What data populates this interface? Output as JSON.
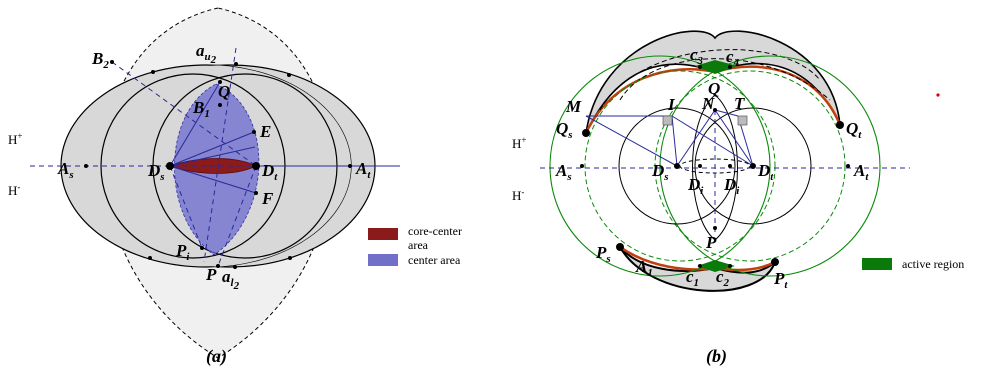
{
  "panel_a": {
    "caption": "(a)",
    "labels": {
      "B": "B",
      "B_sub": "2",
      "au": "a",
      "au_sub": "u",
      "au_sub2": "2",
      "Q": "Q",
      "B1": "B",
      "B1_sub": "1",
      "E": "E",
      "Hplus": "H",
      "Hplus_sup": "+",
      "Hminus": "H",
      "Hminus_sup": "-",
      "As": "A",
      "As_sub": "s",
      "Ds": "D",
      "Ds_sub": "s",
      "Dt": "D",
      "Dt_sub": "t",
      "At": "A",
      "At_sub": "t",
      "F": "F",
      "Pi": "P",
      "Pi_sub": "i",
      "P": "P",
      "al": "a",
      "al_sub": "l",
      "al_sub2": "2"
    },
    "legend": [
      {
        "label": "core-center",
        "label2": "area",
        "color": "#8b1a1a"
      },
      {
        "label": "center area",
        "color": "#7070c8"
      }
    ]
  },
  "panel_b": {
    "caption": "(b)",
    "labels": {
      "c3": "c",
      "c3_sub": "3",
      "c4": "c",
      "c4_sub": "4",
      "M": "M",
      "I": "I",
      "N": "N",
      "Q": "Q",
      "T": "T",
      "Qs": "Q",
      "Qs_sub": "s",
      "Qt": "Q",
      "Qt_sub": "t",
      "Hplus": "H",
      "Hplus_sup": "+",
      "Hminus": "H",
      "Hminus_sup": "-",
      "As": "A",
      "As_sub": "s",
      "Ds": "D",
      "Ds_sub": "s",
      "Dt": "D",
      "Dt_sub": "t",
      "At": "A",
      "At_sub": "t",
      "Di1": "D",
      "Di1_sub": "i",
      "Di2": "D",
      "Di2_sub": "i",
      "P": "P",
      "Ps": "P",
      "Ps_sub": "s",
      "A1": "A",
      "A1_sub": "1",
      "c1": "c",
      "c1_sub": "1",
      "c2": "c",
      "c2_sub": "2",
      "Pt": "P",
      "Pt_sub": "t"
    },
    "legend": [
      {
        "label": "active region",
        "color": "#0a7a0a"
      }
    ]
  },
  "colors": {
    "dashed_blue": "#2a2a9a",
    "center_fill": "#6a6ad0",
    "core_fill": "#8b1a1a",
    "gray_fill": "#d8d8d8",
    "light_fill": "#efefef",
    "orange_arc": "#c04010",
    "green": "#0a8a0a",
    "red_dot": "#e00000"
  }
}
